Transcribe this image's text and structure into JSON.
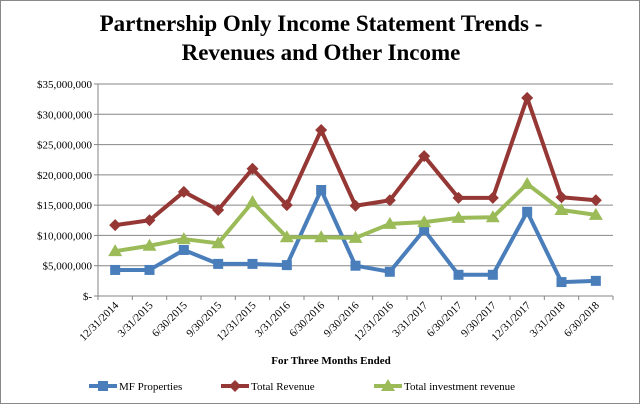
{
  "chart_data": {
    "type": "line",
    "title": "Partnership Only Income Statement Trends - Revenues and Other Income",
    "x_label": "For Three Months Ended",
    "categories": [
      "12/31/2014",
      "3/31/2015",
      "6/30/2015",
      "9/30/2015",
      "12/31/2015",
      "3/31/2016",
      "6/30/2016",
      "9/30/2016",
      "12/31/2016",
      "3/31/2017",
      "6/30/2017",
      "9/30/2017",
      "12/31/2017",
      "3/31/2018",
      "6/30/2018"
    ],
    "series": [
      {
        "name": "MF Properties",
        "color": "#4a7ebb",
        "marker": "square",
        "values": [
          4300000,
          4300000,
          7600000,
          5300000,
          5300000,
          5100000,
          17500000,
          5000000,
          4000000,
          10900000,
          3500000,
          3500000,
          13900000,
          2300000,
          2500000
        ]
      },
      {
        "name": "Total Revenue",
        "color": "#953735",
        "marker": "diamond",
        "values": [
          11700000,
          12500000,
          17200000,
          14200000,
          21000000,
          15000000,
          27400000,
          14900000,
          15800000,
          23100000,
          16200000,
          16200000,
          32700000,
          16300000,
          15800000
        ]
      },
      {
        "name": "Total investment revenue",
        "color": "#9bbb59",
        "marker": "triangle",
        "values": [
          7400000,
          8300000,
          9400000,
          8700000,
          15500000,
          9700000,
          9700000,
          9600000,
          11900000,
          12200000,
          12900000,
          13000000,
          18500000,
          14200000,
          13400000
        ]
      }
    ],
    "ylim": [
      0,
      35000000
    ],
    "yticks": [
      {
        "value": 0,
        "label": "$-"
      },
      {
        "value": 5000000,
        "label": "$5,000,000"
      },
      {
        "value": 10000000,
        "label": "$10,000,000"
      },
      {
        "value": 15000000,
        "label": "$15,000,000"
      },
      {
        "value": 20000000,
        "label": "$20,000,000"
      },
      {
        "value": 25000000,
        "label": "$25,000,000"
      },
      {
        "value": 30000000,
        "label": "$30,000,000"
      },
      {
        "value": 35000000,
        "label": "$35,000,000"
      }
    ],
    "grid": true,
    "legend": "bottom"
  }
}
